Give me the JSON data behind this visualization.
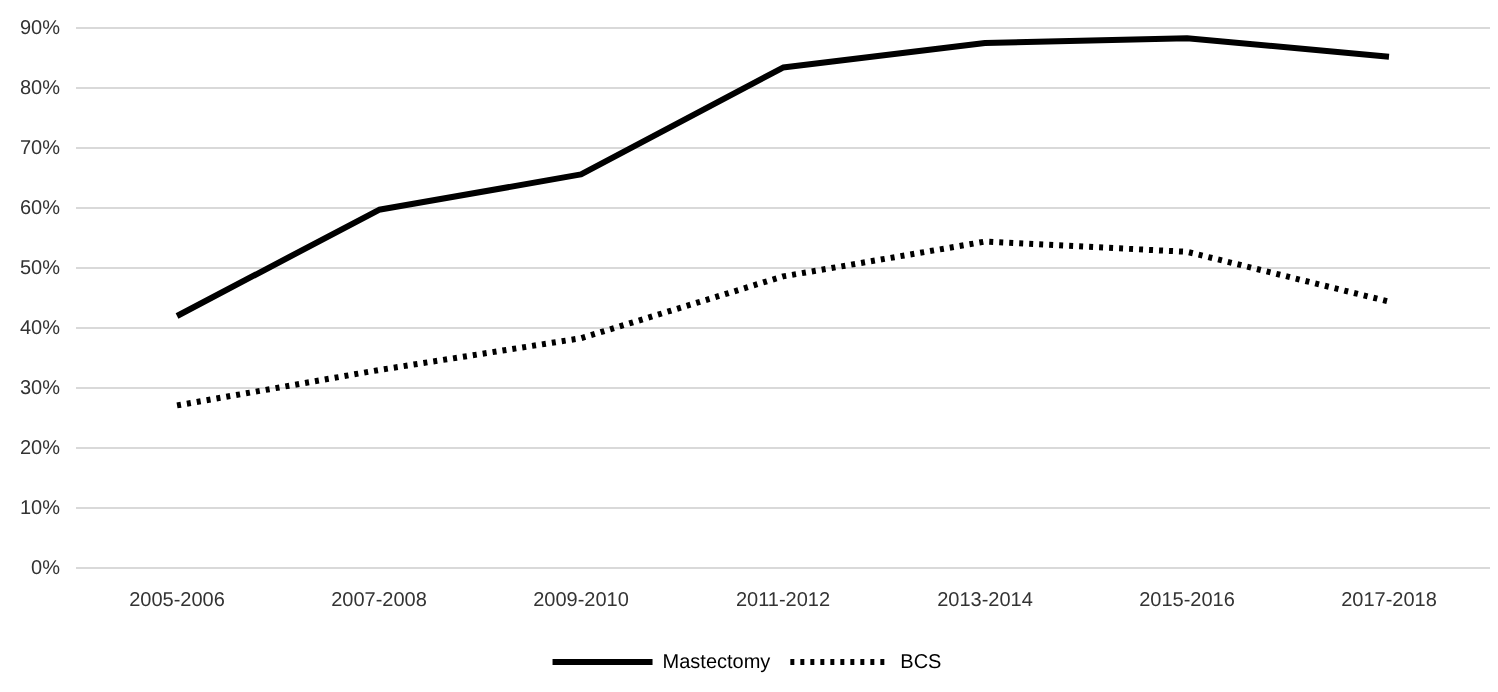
{
  "chart_data": {
    "type": "line",
    "categories": [
      "2005-2006",
      "2007-2008",
      "2009-2010",
      "2011-2012",
      "2013-2014",
      "2015-2016",
      "2017-2018"
    ],
    "series": [
      {
        "name": "Mastectomy",
        "color": "#000000",
        "line_style": "solid",
        "values": [
          42,
          59.7,
          65.6,
          83.4,
          87.5,
          88.3,
          85.2
        ]
      },
      {
        "name": "BCS",
        "color": "#000000",
        "line_style": "dotted",
        "values": [
          27.1,
          33,
          38.3,
          48.6,
          54.4,
          52.7,
          44.4
        ]
      }
    ],
    "ylim": [
      0,
      90
    ],
    "yticks": [
      {
        "value": 0,
        "label": "0%"
      },
      {
        "value": 10,
        "label": "10%"
      },
      {
        "value": 20,
        "label": "20%"
      },
      {
        "value": 30,
        "label": "30%"
      },
      {
        "value": 40,
        "label": "40%"
      },
      {
        "value": 50,
        "label": "50%"
      },
      {
        "value": 60,
        "label": "60%"
      },
      {
        "value": 70,
        "label": "70%"
      },
      {
        "value": 80,
        "label": "80%"
      },
      {
        "value": 90,
        "label": "90%"
      }
    ],
    "grid": "y",
    "legend": "bottom",
    "marker": "none"
  }
}
